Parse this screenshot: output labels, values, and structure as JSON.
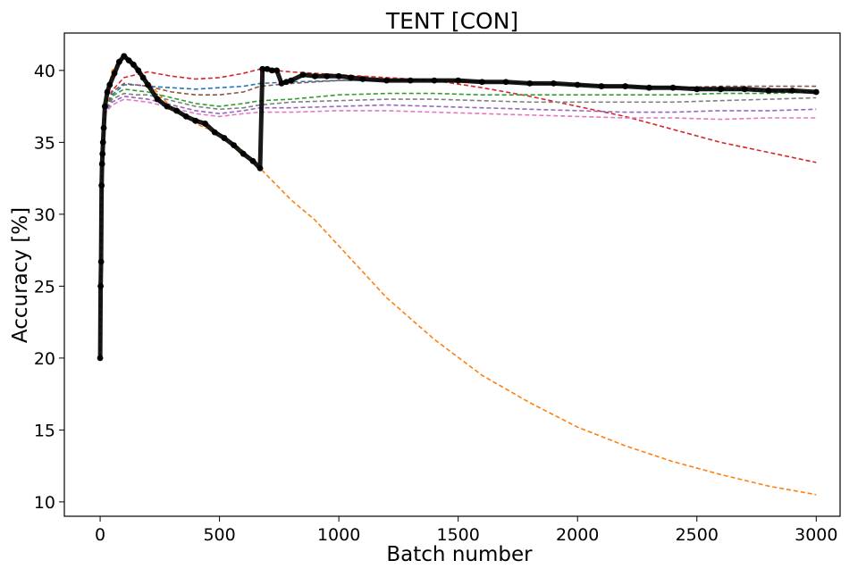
{
  "chart_data": {
    "type": "line",
    "title": "TENT [CON]",
    "xlabel": "Batch number",
    "ylabel": "Accuracy [%]",
    "xlim": [
      -150,
      3100
    ],
    "ylim": [
      9,
      42.6
    ],
    "xticks": [
      0,
      500,
      1000,
      1500,
      2000,
      2500,
      3000
    ],
    "yticks": [
      10,
      15,
      20,
      25,
      30,
      35,
      40
    ],
    "grid": false,
    "legend": "none",
    "series": [
      {
        "color": "#ff7f0e",
        "style": "dashed",
        "x": [
          0,
          5,
          20,
          50,
          100,
          150,
          200,
          300,
          400,
          500,
          600,
          670,
          800,
          900,
          1000,
          1200,
          1400,
          1600,
          1800,
          2000,
          2200,
          2400,
          2600,
          2800,
          3000
        ],
        "y": [
          20,
          32,
          37,
          40,
          40.9,
          40.3,
          39.2,
          37.4,
          36.3,
          35.6,
          34.4,
          33.2,
          31.0,
          29.6,
          27.8,
          24.2,
          21.3,
          18.8,
          16.9,
          15.2,
          13.9,
          12.8,
          11.9,
          11.1,
          10.5
        ]
      },
      {
        "color": "#d62728",
        "style": "dashed",
        "x": [
          0,
          5,
          20,
          50,
          100,
          150,
          200,
          300,
          400,
          500,
          600,
          670,
          800,
          1000,
          1200,
          1400,
          1600,
          1800,
          2000,
          2200,
          2400,
          2600,
          2800,
          3000
        ],
        "y": [
          20,
          32,
          37,
          38.6,
          39.5,
          39.7,
          39.9,
          39.6,
          39.4,
          39.5,
          39.8,
          40.1,
          39.9,
          39.7,
          39.5,
          39.3,
          38.8,
          38.2,
          37.5,
          36.8,
          35.9,
          35.0,
          34.3,
          33.6
        ]
      },
      {
        "color": "#1f77b4",
        "style": "dashed",
        "x": [
          0,
          5,
          20,
          50,
          100,
          150,
          200,
          300,
          400,
          500,
          600,
          670,
          800,
          1000,
          1200,
          1400,
          1600,
          1800,
          2000,
          2200,
          2400,
          2600,
          2800,
          3000
        ],
        "y": [
          20,
          32,
          37,
          38.3,
          39.0,
          39.0,
          38.9,
          38.8,
          38.7,
          38.8,
          38.9,
          39.1,
          39.2,
          39.3,
          39.3,
          39.3,
          39.2,
          39.1,
          39.0,
          38.9,
          38.8,
          38.7,
          38.6,
          38.5
        ]
      },
      {
        "color": "#8c564b",
        "style": "dashed",
        "x": [
          0,
          5,
          20,
          50,
          100,
          150,
          200,
          300,
          400,
          500,
          600,
          670,
          800,
          1000,
          1200,
          1400,
          1600,
          1800,
          2000,
          2200,
          2400,
          2600,
          2800,
          3000
        ],
        "y": [
          20,
          32,
          37,
          38.5,
          39.1,
          39.0,
          38.9,
          38.5,
          38.3,
          38.3,
          38.5,
          38.9,
          39.1,
          39.3,
          39.3,
          39.3,
          39.2,
          39.1,
          39.0,
          38.9,
          38.8,
          38.9,
          38.9,
          38.9
        ]
      },
      {
        "color": "#2ca02c",
        "style": "dashed",
        "x": [
          0,
          5,
          20,
          50,
          100,
          150,
          200,
          300,
          400,
          500,
          600,
          670,
          800,
          1000,
          1200,
          1400,
          1600,
          1800,
          2000,
          2200,
          2400,
          2600,
          2800,
          3000
        ],
        "y": [
          20,
          32,
          37,
          38.2,
          38.7,
          38.6,
          38.5,
          38.1,
          37.7,
          37.5,
          37.7,
          37.9,
          38.0,
          38.3,
          38.4,
          38.4,
          38.3,
          38.3,
          38.3,
          38.3,
          38.3,
          38.4,
          38.4,
          38.5
        ]
      },
      {
        "color": "#7f7f7f",
        "style": "dashed",
        "x": [
          0,
          5,
          20,
          50,
          100,
          150,
          200,
          300,
          400,
          500,
          600,
          670,
          800,
          1000,
          1200,
          1400,
          1600,
          1800,
          2000,
          2200,
          2400,
          2600,
          2800,
          3000
        ],
        "y": [
          20,
          32,
          37,
          38.0,
          38.4,
          38.3,
          38.3,
          37.9,
          37.5,
          37.3,
          37.4,
          37.6,
          37.8,
          37.9,
          38.0,
          38.0,
          37.9,
          37.8,
          37.8,
          37.8,
          37.8,
          37.9,
          38.0,
          38.1
        ]
      },
      {
        "color": "#9467bd",
        "style": "dashed",
        "x": [
          0,
          5,
          20,
          50,
          100,
          150,
          200,
          300,
          400,
          500,
          600,
          670,
          800,
          1000,
          1200,
          1400,
          1600,
          1800,
          2000,
          2200,
          2400,
          2600,
          2800,
          3000
        ],
        "y": [
          20,
          32,
          37,
          37.8,
          38.2,
          38.1,
          38.0,
          37.6,
          37.2,
          37.0,
          37.2,
          37.4,
          37.4,
          37.5,
          37.6,
          37.5,
          37.4,
          37.3,
          37.2,
          37.1,
          37.1,
          37.2,
          37.2,
          37.3
        ]
      },
      {
        "color": "#e377c2",
        "style": "dashed",
        "x": [
          0,
          5,
          20,
          50,
          100,
          150,
          200,
          300,
          400,
          500,
          600,
          670,
          800,
          1000,
          1200,
          1400,
          1600,
          1800,
          2000,
          2200,
          2400,
          2600,
          2800,
          3000
        ],
        "y": [
          20,
          32,
          37,
          37.6,
          38.0,
          37.9,
          37.8,
          37.4,
          37.0,
          36.8,
          37.0,
          37.1,
          37.1,
          37.2,
          37.2,
          37.1,
          37.0,
          36.9,
          36.8,
          36.7,
          36.7,
          36.6,
          36.7,
          36.7
        ]
      },
      {
        "color": "#000000",
        "style": "markers",
        "x": [
          0,
          2,
          4,
          6,
          8,
          10,
          12,
          15,
          20,
          30,
          40,
          60,
          80,
          100,
          120,
          140,
          160,
          180,
          200,
          240,
          280,
          320,
          360,
          400,
          440,
          480,
          520,
          560,
          600,
          640,
          670,
          680,
          700,
          720,
          740,
          760,
          780,
          800,
          850,
          900,
          950,
          1000,
          1050,
          1100,
          1200,
          1300,
          1400,
          1500,
          1600,
          1700,
          1800,
          1900,
          2000,
          2100,
          2200,
          2300,
          2400,
          2500,
          2600,
          2700,
          2800,
          2900,
          3000
        ],
        "y": [
          20,
          25,
          26.7,
          32,
          33.5,
          34.2,
          35,
          36,
          37.5,
          38.5,
          39,
          39.8,
          40.6,
          41,
          40.7,
          40.4,
          40,
          39.5,
          39,
          38,
          37.5,
          37.2,
          36.8,
          36.5,
          36.3,
          35.7,
          35.3,
          34.8,
          34.2,
          33.7,
          33.2,
          40.1,
          40.1,
          40,
          40,
          39.1,
          39.2,
          39.3,
          39.7,
          39.6,
          39.6,
          39.6,
          39.5,
          39.4,
          39.3,
          39.3,
          39.3,
          39.3,
          39.2,
          39.2,
          39.1,
          39.1,
          39.0,
          38.9,
          38.9,
          38.8,
          38.8,
          38.7,
          38.7,
          38.7,
          38.6,
          38.6,
          38.5
        ]
      }
    ]
  }
}
